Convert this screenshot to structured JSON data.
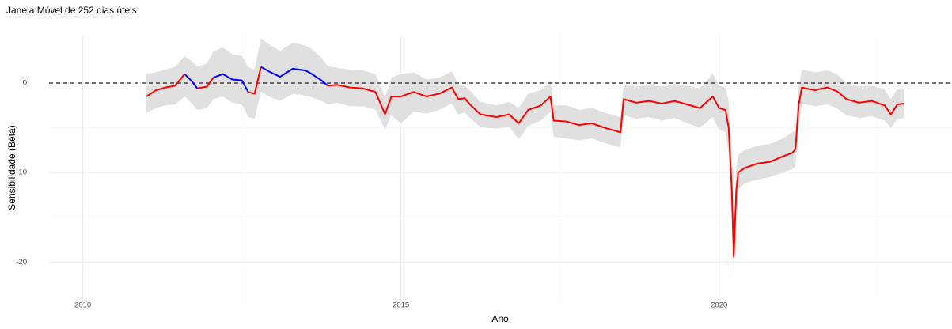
{
  "chart_data": {
    "type": "line",
    "title": "Janela Móvel de 252 dias úteis",
    "xlabel": "Ano",
    "ylabel": "Sensibilidade (Beta)",
    "xlim": [
      2009.47,
      2023.66
    ],
    "ylim": [
      -24.3,
      5.3
    ],
    "xticks": [
      2010,
      2015,
      2020
    ],
    "yticks": [
      -20,
      -10,
      0
    ],
    "minor_xticks": [
      2012.5,
      2017.5,
      2022.5
    ],
    "minor_yticks": [
      -15,
      -5
    ],
    "grid": true,
    "reference_line": {
      "value": 0,
      "color": "#222222",
      "dashed": true
    },
    "x": [
      2011.0,
      2011.15,
      2011.3,
      2011.45,
      2011.6,
      2011.7,
      2011.8,
      2011.95,
      2012.05,
      2012.2,
      2012.35,
      2012.5,
      2012.6,
      2012.7,
      2012.8,
      2012.95,
      2013.1,
      2013.3,
      2013.5,
      2013.6,
      2013.75,
      2013.85,
      2014.0,
      2014.2,
      2014.4,
      2014.6,
      2014.75,
      2014.85,
      2015.0,
      2015.2,
      2015.4,
      2015.6,
      2015.8,
      2015.9,
      2016.0,
      2016.1,
      2016.25,
      2016.5,
      2016.7,
      2016.85,
      2017.0,
      2017.2,
      2017.35,
      2017.4,
      2017.6,
      2017.8,
      2018.0,
      2018.2,
      2018.45,
      2018.5,
      2018.7,
      2018.9,
      2019.1,
      2019.3,
      2019.5,
      2019.7,
      2019.9,
      2020.0,
      2020.1,
      2020.15,
      2020.2,
      2020.23,
      2020.27,
      2020.3,
      2020.4,
      2020.6,
      2020.8,
      2021.0,
      2021.15,
      2021.2,
      2021.25,
      2021.3,
      2021.5,
      2021.7,
      2021.85,
      2022.0,
      2022.2,
      2022.4,
      2022.6,
      2022.7,
      2022.8,
      2022.9
    ],
    "band": {
      "color": "#e0e0e0",
      "lower": [
        -3.3,
        -2.8,
        -2.5,
        -2.4,
        -1.5,
        -2.2,
        -3.0,
        -2.8,
        -1.8,
        -1.5,
        -2.2,
        -2.4,
        -3.8,
        -4.0,
        -1.0,
        -1.6,
        -2.0,
        -1.2,
        -1.4,
        -1.6,
        -2.0,
        -2.4,
        -2.2,
        -2.6,
        -2.6,
        -3.0,
        -5.2,
        -3.6,
        -4.5,
        -3.2,
        -3.4,
        -3.0,
        -2.3,
        -3.5,
        -3.3,
        -4.0,
        -4.9,
        -5.1,
        -4.9,
        -6.3,
        -4.8,
        -4.2,
        -3.2,
        -6.0,
        -6.2,
        -6.4,
        -6.2,
        -6.7,
        -7.2,
        -3.6,
        -4.0,
        -3.8,
        -4.2,
        -3.9,
        -4.5,
        -5.0,
        -3.8,
        -5.2,
        -5.5,
        -8.0,
        -15,
        -21.5,
        -14.5,
        -12,
        -11.2,
        -10.8,
        -10.5,
        -10.0,
        -9.6,
        -9.3,
        -4.5,
        -2.3,
        -2.6,
        -2.4,
        -2.8,
        -3.6,
        -3.9,
        -3.7,
        -4.2,
        -5.0,
        -4.0,
        -3.9
      ],
      "upper": [
        1.0,
        1.2,
        1.5,
        1.8,
        3.0,
        2.5,
        1.8,
        2.2,
        3.5,
        4.0,
        3.2,
        3.0,
        1.8,
        1.5,
        5.0,
        4.2,
        3.6,
        4.5,
        4.2,
        3.8,
        2.8,
        1.9,
        1.7,
        1.5,
        1.4,
        1.0,
        -1.6,
        0.6,
        1.0,
        1.2,
        0.4,
        0.6,
        1.3,
        -0.1,
        -0.2,
        -1.0,
        -2.1,
        -2.5,
        -2.1,
        -2.8,
        -1.2,
        -0.8,
        0.3,
        -2.5,
        -2.5,
        -3.0,
        -2.8,
        -3.3,
        -3.8,
        -0.1,
        -0.4,
        -0.2,
        -0.4,
        -0.1,
        -0.3,
        -0.6,
        1.0,
        -0.3,
        -0.5,
        -2.0,
        -9,
        -17,
        -9.5,
        -8,
        -7.5,
        -7.0,
        -6.8,
        -6.2,
        -5.5,
        -5.2,
        -0.5,
        1.5,
        1.2,
        1.4,
        1.0,
        0.0,
        -0.4,
        -0.3,
        -0.7,
        -1.8,
        -0.7,
        -0.6
      ]
    },
    "series": [
      {
        "color": "#ff0000",
        "values": [
          -1.5,
          -0.8,
          -0.5,
          -0.3,
          1.0,
          null,
          -0.6,
          -0.4,
          0.6,
          null,
          null,
          null,
          -1.0,
          -1.2,
          1.8,
          null,
          null,
          null,
          null,
          null,
          null,
          -0.3,
          -0.2,
          -0.5,
          -0.6,
          -1.0,
          -3.5,
          -1.5,
          -1.5,
          -1.0,
          -1.5,
          -1.2,
          -0.5,
          -1.8,
          -1.7,
          -2.5,
          -3.5,
          -3.8,
          -3.5,
          -4.5,
          -3.0,
          -2.5,
          -1.5,
          -4.2,
          -4.3,
          -4.7,
          -4.5,
          -5.0,
          -5.5,
          -1.8,
          -2.2,
          -2.0,
          -2.3,
          -2.0,
          -2.4,
          -2.8,
          -1.5,
          -2.8,
          -3.0,
          -5.0,
          -12,
          -19.4,
          -12,
          -10,
          -9.5,
          -9.0,
          -8.8,
          -8.2,
          -7.8,
          -7.4,
          -2.5,
          -0.5,
          -0.8,
          -0.5,
          -0.9,
          -1.8,
          -2.2,
          -2.0,
          -2.5,
          -3.5,
          -2.4,
          -2.3
        ]
      },
      {
        "color": "#0000ff",
        "values": [
          null,
          null,
          null,
          null,
          1.0,
          0.3,
          -0.6,
          null,
          0.6,
          1.0,
          0.4,
          0.3,
          -1.0,
          null,
          1.8,
          1.2,
          0.7,
          1.6,
          1.4,
          1.0,
          0.3,
          -0.3,
          null,
          null,
          null,
          null,
          null,
          null,
          null,
          null,
          null,
          null,
          null,
          null,
          null,
          null,
          null,
          null,
          null,
          null,
          null,
          null,
          null,
          null,
          null,
          null,
          null,
          null,
          null,
          null,
          null,
          null,
          null,
          null,
          null,
          null,
          null,
          null,
          null,
          null,
          null,
          null,
          null,
          null,
          null,
          null,
          null,
          null,
          null,
          null,
          null,
          null,
          null,
          null,
          null,
          null,
          null,
          null,
          null,
          null,
          null,
          null
        ]
      }
    ]
  }
}
